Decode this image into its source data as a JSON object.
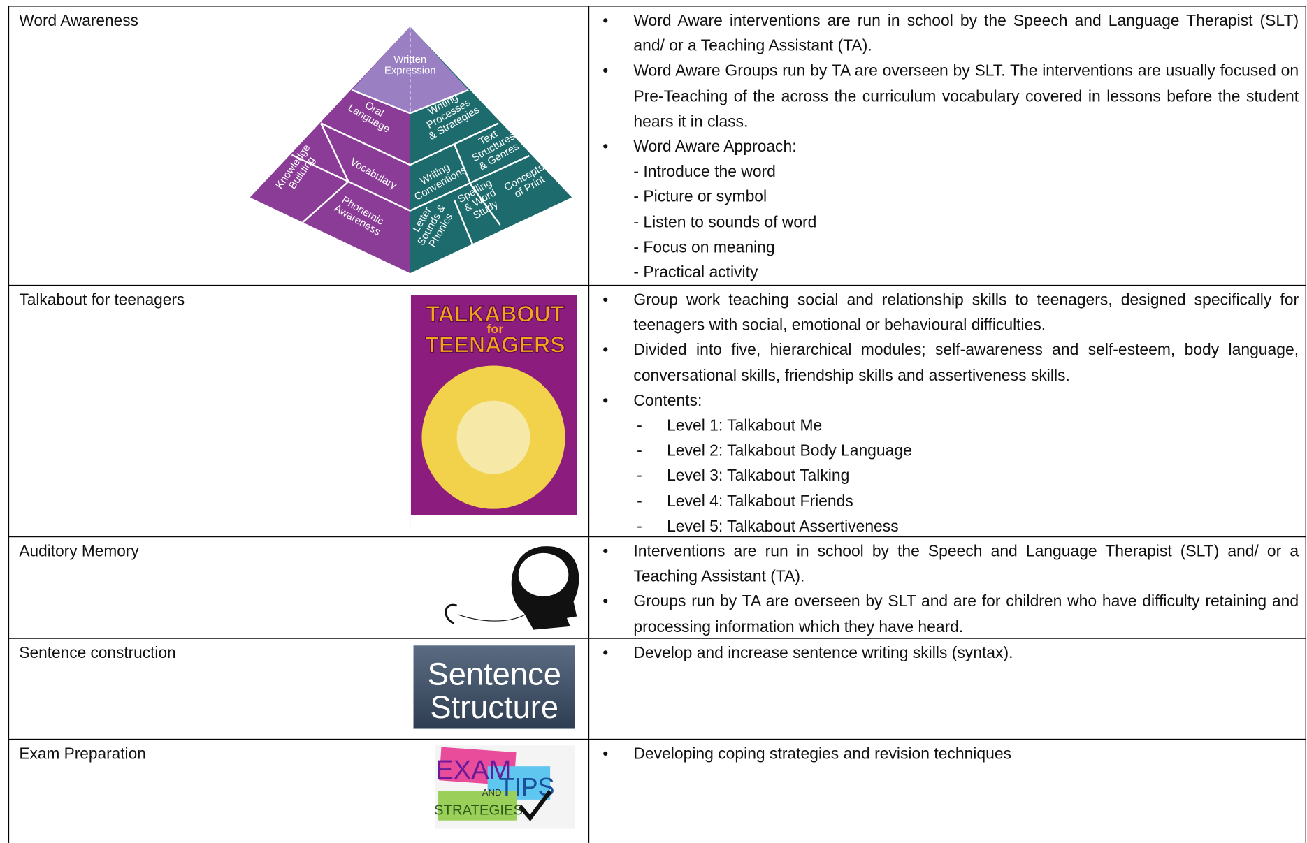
{
  "rows": [
    {
      "title": "Word Awareness",
      "bullets": [
        "Word Aware interventions are run in school by the Speech and Language Therapist (SLT) and/ or a Teaching Assistant (TA).",
        "Word Aware Groups run by TA are overseen by SLT. The interventions are usually focused on Pre-Teaching of the across the curriculum vocabulary covered in lessons before the student hears it in class.",
        "Word Aware Approach:"
      ],
      "sub": [
        {
          "text": "- Introduce the word"
        },
        {
          "text": "- Picture or symbol"
        },
        {
          "text": "- Listen to sounds of word"
        },
        {
          "text": "- Focus on meaning"
        },
        {
          "text": "- Practical activity"
        }
      ],
      "image": {
        "labels": [
          [
            "Written",
            "Expression"
          ],
          [
            "Oral",
            "Language"
          ],
          [
            "Writing",
            "Processes",
            "& Strategies"
          ],
          [
            "Knowledge",
            "Building"
          ],
          [
            "Vocabulary"
          ],
          [
            "Text",
            "Structures",
            "& Genres"
          ],
          [
            "Writing",
            "Conventions"
          ],
          [
            "Concepts",
            "of Print"
          ],
          [
            "Phonemic",
            "Awareness"
          ],
          [
            "Spelling",
            "& Word",
            "Study"
          ],
          [
            "Letter",
            "Sounds &",
            "Phonics"
          ]
        ]
      }
    },
    {
      "title": "Talkabout for teenagers",
      "bullets": [
        "Group work teaching social and relationship skills to teenagers, designed specifically for teenagers with social, emotional or behavioural difficulties.",
        "Divided into five, hierarchical modules; self-awareness and self-esteem, body language, conversational skills, friendship skills and assertiveness skills.",
        "Contents:"
      ],
      "sub": [
        {
          "marker": "-",
          "text": "Level 1: Talkabout Me"
        },
        {
          "marker": "-",
          "text": "Level 2: Talkabout Body Language"
        },
        {
          "marker": "-",
          "text": "Level 3: Talkabout Talking"
        },
        {
          "marker": "-",
          "text": "Level 4: Talkabout Friends"
        },
        {
          "marker": "-",
          "text": "Level 5: Talkabout Assertiveness"
        }
      ],
      "image": {
        "labels": [
          "TALKABOUT",
          "for",
          "TEENAGERS"
        ]
      }
    },
    {
      "title": "Auditory Memory",
      "bullets": [
        "Interventions are run in school by the Speech and Language Therapist (SLT) and/ or a Teaching Assistant (TA).",
        "Groups run by TA are overseen by SLT and are for children who have difficulty retaining and processing information which they have heard."
      ]
    },
    {
      "title": "Sentence construction",
      "bullets": [
        "Develop and increase sentence writing skills (syntax)."
      ],
      "image": {
        "labels": [
          "Sentence",
          "Structure"
        ]
      }
    },
    {
      "title": "Exam Preparation",
      "bullets": [
        "Developing coping strategies and revision techniques"
      ],
      "image": {
        "labels": [
          "EXAM",
          "AND",
          "TIPS",
          "STRATEGIES"
        ]
      }
    }
  ]
}
